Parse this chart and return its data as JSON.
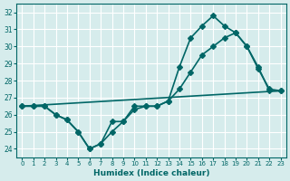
{
  "xlabel": "Humidex (Indice chaleur)",
  "ylabel": "",
  "background_color": "#d6ecec",
  "grid_color": "#ffffff",
  "line_color": "#006666",
  "xlim": [
    -0.5,
    23.5
  ],
  "ylim": [
    23.5,
    32.5
  ],
  "xticks": [
    0,
    1,
    2,
    3,
    4,
    5,
    6,
    7,
    8,
    9,
    10,
    11,
    12,
    13,
    14,
    15,
    16,
    17,
    18,
    19,
    20,
    21,
    22,
    23
  ],
  "yticks": [
    24,
    25,
    26,
    27,
    28,
    29,
    30,
    31,
    32
  ],
  "line1_x": [
    0,
    1,
    2,
    3,
    4,
    5,
    6,
    7,
    8,
    9,
    10,
    11,
    12,
    13,
    14,
    15,
    16,
    17,
    18,
    19,
    20,
    21,
    22,
    23
  ],
  "line1_y": [
    26.5,
    26.5,
    26.5,
    26.0,
    25.7,
    25.0,
    24.0,
    24.3,
    25.0,
    25.6,
    26.3,
    26.5,
    26.5,
    26.8,
    27.5,
    28.5,
    29.5,
    30.0,
    30.5,
    30.8,
    30.0,
    28.7,
    27.5,
    27.4
  ],
  "line2_x": [
    0,
    1,
    2,
    3,
    4,
    5,
    6,
    7,
    8,
    9,
    10,
    11,
    12,
    13,
    14,
    15,
    16,
    17,
    18,
    19,
    20,
    21,
    22,
    23
  ],
  "line2_y": [
    26.5,
    26.5,
    26.5,
    26.0,
    25.7,
    25.0,
    24.0,
    24.3,
    25.6,
    25.6,
    26.5,
    26.5,
    26.5,
    26.8,
    28.8,
    30.5,
    31.2,
    31.8,
    31.2,
    30.8,
    30.0,
    28.8,
    27.4,
    27.4
  ],
  "line3_x": [
    0,
    23
  ],
  "line3_y": [
    26.5,
    27.4
  ],
  "marker_size": 3,
  "line_width": 1.2
}
